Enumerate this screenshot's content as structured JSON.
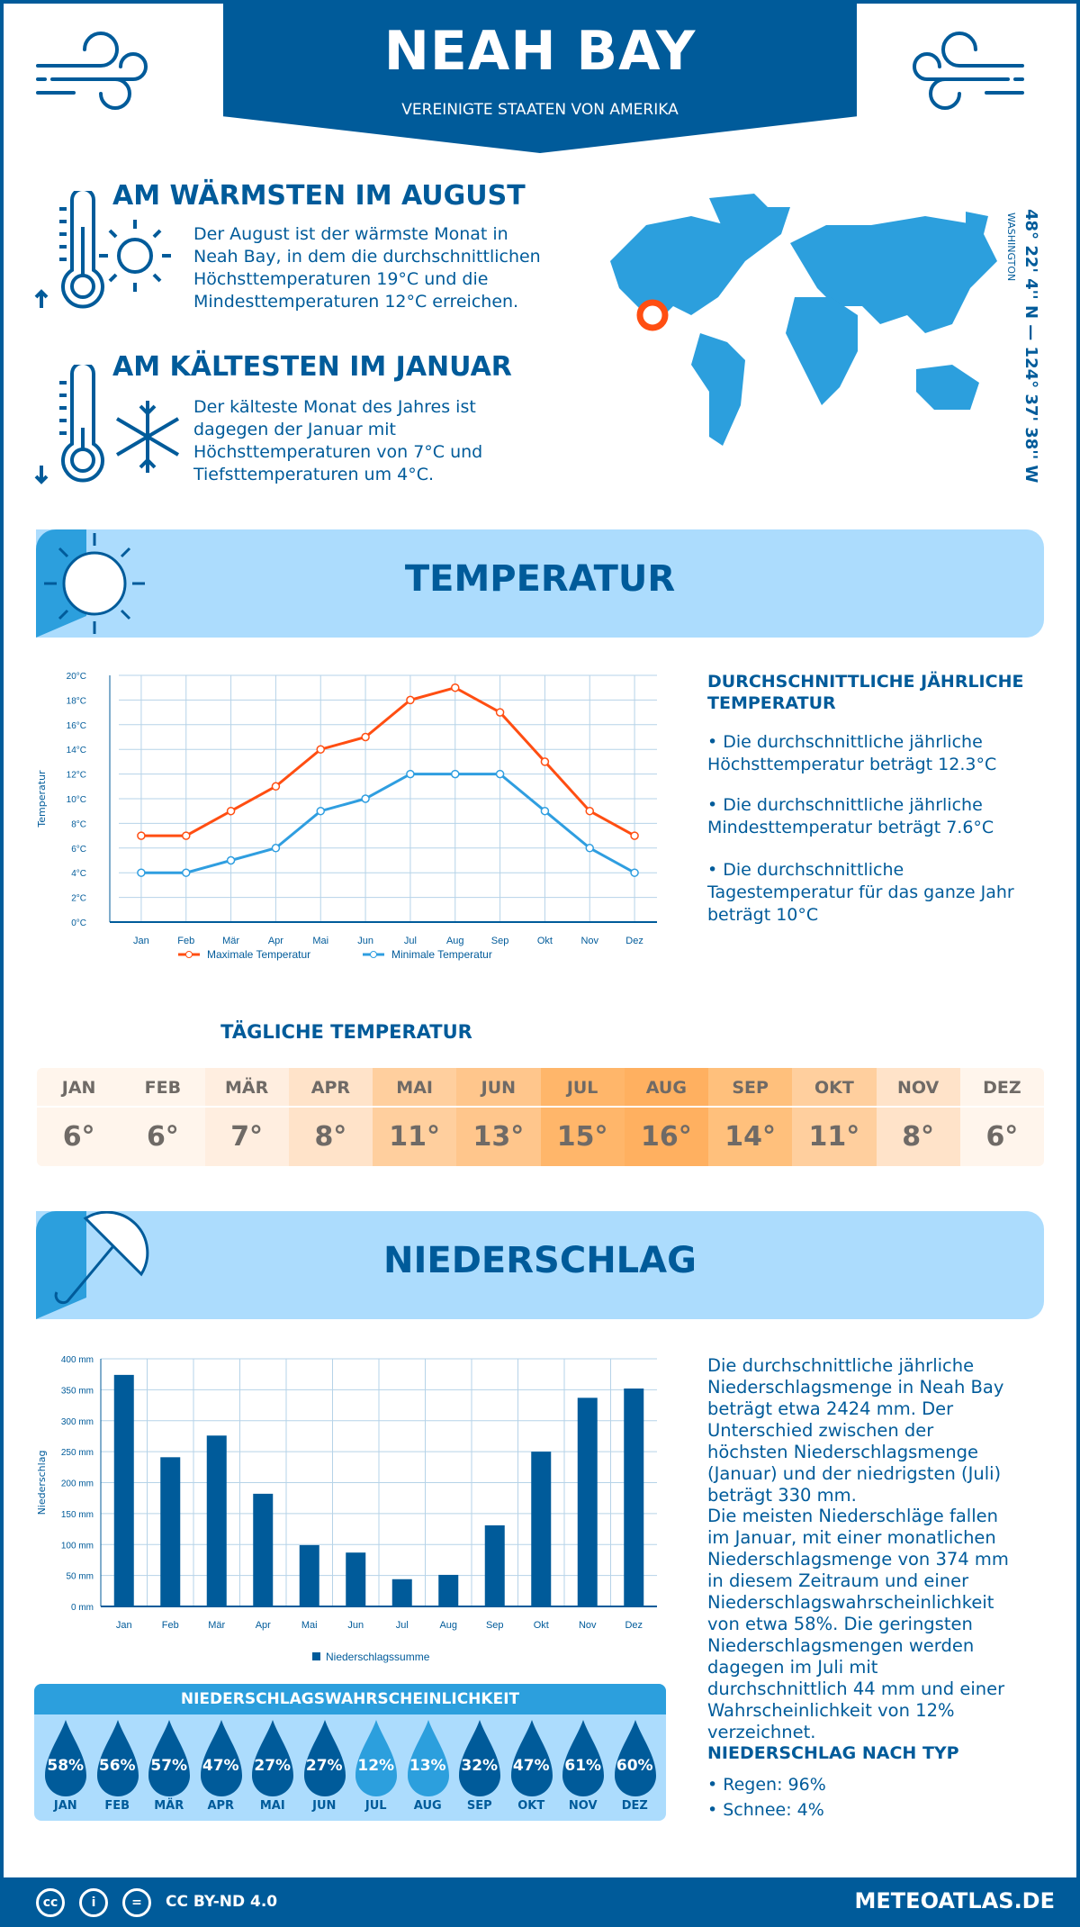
{
  "header": {
    "title": "NEAH BAY",
    "subtitle": "VEREINIGTE STAATEN VON AMERIKA"
  },
  "warmest": {
    "heading": "AM WÄRMSTEN IM AUGUST",
    "text": "Der August ist der wärmste Monat in Neah Bay, in dem die durchschnittlichen Höchsttemperaturen 19°C und die Mindesttemperaturen 12°C erreichen."
  },
  "coldest": {
    "heading": "AM KÄLTESTEN IM JANUAR",
    "text": "Der kälteste Monat des Jahres ist dagegen der Januar mit Höchsttemperaturen von 7°C und Tiefsttemperaturen um 4°C."
  },
  "location": {
    "coords": "48° 22' 4'' N — 124° 37' 38'' W",
    "region": "WASHINGTON"
  },
  "temperature_section": {
    "title": "TEMPERATUR",
    "summary_heading": "DURCHSCHNITTLICHE JÄHRLICHE TEMPERATUR",
    "bullets": [
      "• Die durchschnittliche jährliche Höchsttemperatur beträgt 12.3°C",
      "• Die durchschnittliche jährliche Mindesttemperatur beträgt 7.6°C",
      "• Die durchschnittliche Tagestemperatur für das ganze Jahr beträgt 10°C"
    ]
  },
  "daily": {
    "title": "TÄGLICHE TEMPERATUR",
    "months": [
      "JAN",
      "FEB",
      "MÄR",
      "APR",
      "MAI",
      "JUN",
      "JUL",
      "AUG",
      "SEP",
      "OKT",
      "NOV",
      "DEZ"
    ],
    "values": [
      "6°",
      "6°",
      "7°",
      "8°",
      "11°",
      "13°",
      "15°",
      "16°",
      "14°",
      "11°",
      "8°",
      "6°"
    ],
    "colors": [
      "#fff5ec",
      "#fff5ec",
      "#ffeee0",
      "#ffe3c9",
      "#ffcf9e",
      "#ffc68c",
      "#ffb66a",
      "#ffb060",
      "#ffc07c",
      "#ffcf9e",
      "#ffe3c9",
      "#fff5ec"
    ]
  },
  "precip_section": {
    "title": "NIEDERSCHLAG",
    "text1": "Die durchschnittliche jährliche Niederschlagsmenge in Neah Bay beträgt etwa 2424 mm. Der Unterschied zwischen der höchsten Niederschlagsmenge (Januar) und der niedrigsten (Juli) beträgt 330 mm.",
    "text2": "Die meisten Niederschläge fallen im Januar, mit einer monatlichen Niederschlagsmenge von 374 mm in diesem Zeitraum und einer Niederschlagswahrscheinlichkeit von etwa 58%. Die geringsten Niederschlagsmengen werden dagegen im Juli mit durchschnittlich 44 mm und einer Wahrscheinlichkeit von 12% verzeichnet.",
    "type_heading": "NIEDERSCHLAG NACH TYP",
    "types": [
      "• Regen: 96%",
      "• Schnee: 4%"
    ]
  },
  "probability": {
    "title": "NIEDERSCHLAGSWAHRSCHEINLICHKEIT",
    "months": [
      "JAN",
      "FEB",
      "MÄR",
      "APR",
      "MAI",
      "JUN",
      "JUL",
      "AUG",
      "SEP",
      "OKT",
      "NOV",
      "DEZ"
    ],
    "values": [
      "58%",
      "56%",
      "57%",
      "47%",
      "27%",
      "27%",
      "12%",
      "13%",
      "32%",
      "47%",
      "61%",
      "60%"
    ],
    "colors": {
      "high": "#005b9a",
      "low": "#2c9fdd"
    }
  },
  "chart_data": [
    {
      "type": "line",
      "categories": [
        "Jan",
        "Feb",
        "Mär",
        "Apr",
        "Mai",
        "Jun",
        "Jul",
        "Aug",
        "Sep",
        "Okt",
        "Nov",
        "Dez"
      ],
      "ylabel": "Temperatur",
      "ylim": [
        0,
        20
      ],
      "yticks": [
        "0°C",
        "2°C",
        "4°C",
        "6°C",
        "8°C",
        "10°C",
        "12°C",
        "14°C",
        "16°C",
        "18°C",
        "20°C"
      ],
      "grid": true,
      "legend": "bottom",
      "series": [
        {
          "name": "Maximale Temperatur",
          "color": "#ff4e12",
          "values": [
            7,
            7,
            9,
            11,
            14,
            15,
            18,
            19,
            17,
            13,
            9,
            7
          ]
        },
        {
          "name": "Minimale Temperatur",
          "color": "#2f9ee0",
          "values": [
            4,
            4,
            5,
            6,
            9,
            10,
            12,
            12,
            12,
            9,
            6,
            4
          ]
        }
      ]
    },
    {
      "type": "bar",
      "categories": [
        "Jan",
        "Feb",
        "Mär",
        "Apr",
        "Mai",
        "Jun",
        "Jul",
        "Aug",
        "Sep",
        "Okt",
        "Nov",
        "Dez"
      ],
      "ylabel": "Niederschlag",
      "ylim": [
        0,
        400
      ],
      "yticks": [
        "0 mm",
        "50 mm",
        "100 mm",
        "150 mm",
        "200 mm",
        "250 mm",
        "300 mm",
        "350 mm",
        "400 mm"
      ],
      "grid": true,
      "legend": "bottom",
      "series": [
        {
          "name": "Niederschlagssumme",
          "color": "#005b9a",
          "values": [
            374,
            241,
            276,
            182,
            99,
            87,
            44,
            51,
            131,
            250,
            337,
            352
          ]
        }
      ]
    }
  ],
  "footer": {
    "license": "CC BY-ND 4.0",
    "site": "METEOATLAS.DE",
    "icons": [
      "cc-icon",
      "by-icon",
      "nd-icon"
    ]
  }
}
